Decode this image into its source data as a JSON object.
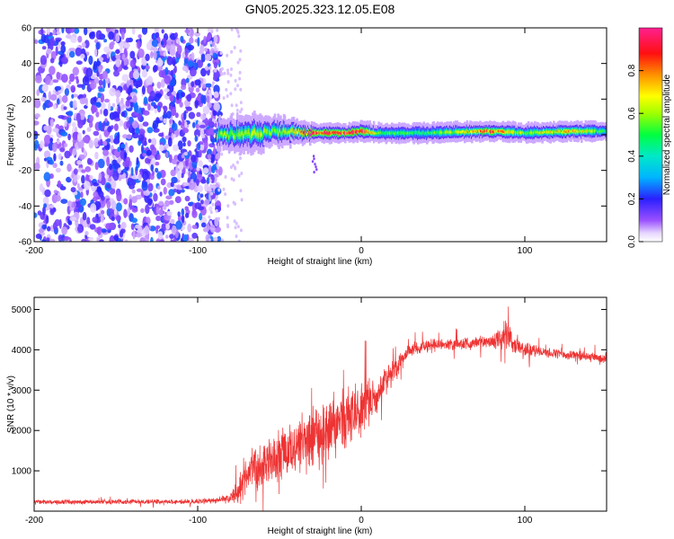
{
  "title": "GN05.2025.323.12.05.E08",
  "chart_data": [
    {
      "type": "heatmap",
      "title": "GN05.2025.323.12.05.E08",
      "xlabel": "Height of straight line (km)",
      "ylabel": "Frequency (Hz)",
      "xlim": [
        -200,
        150
      ],
      "ylim": [
        -60,
        60
      ],
      "xticks": [
        -200,
        -100,
        0,
        100
      ],
      "xtick_labels": [
        "-200",
        "-100",
        "0",
        "100"
      ],
      "yticks": [
        -60,
        -40,
        -20,
        0,
        20,
        40,
        60
      ],
      "ytick_labels": [
        "-60",
        "-40",
        "-20",
        "0",
        "20",
        "40",
        "60"
      ],
      "colorbar": {
        "label": "Normalized spectral amplitude",
        "range": [
          0,
          1
        ],
        "ticks": [
          0.0,
          0.2,
          0.4,
          0.6,
          0.8
        ],
        "tick_labels": [
          "0.0",
          "0.2",
          "0.4",
          "0.6",
          "0.8"
        ],
        "colors": [
          "#ffffff",
          "#7a1fff",
          "#2020ff",
          "#00d8ff",
          "#00ff50",
          "#ffff00",
          "#ff8000",
          "#ff0000",
          "#ff20a0"
        ]
      },
      "noise_region_x": [
        -200,
        -78
      ],
      "signal_band": {
        "x": [
          -88,
          -70,
          -50,
          -30,
          -20,
          -10,
          0,
          10,
          40,
          80,
          100,
          130,
          150
        ],
        "center_hz": [
          0,
          0,
          2,
          1,
          1,
          1,
          2,
          1,
          1,
          2,
          1,
          2,
          2
        ],
        "half_width_hz": [
          3,
          4,
          3,
          2,
          2,
          2,
          2,
          2,
          2,
          2,
          2,
          2,
          2
        ],
        "peak_amplitude": [
          0.55,
          0.65,
          0.6,
          0.9,
          0.95,
          0.9,
          0.95,
          0.55,
          0.5,
          0.85,
          0.6,
          0.75,
          0.5
        ]
      }
    },
    {
      "type": "line",
      "xlabel": "Height of straight line (km)",
      "ylabel": "SNR (10 * v/v)",
      "xlim": [
        -200,
        150
      ],
      "ylim": [
        0,
        5300
      ],
      "xticks": [
        -200,
        -100,
        0,
        100
      ],
      "xtick_labels": [
        "-200",
        "-100",
        "0",
        "100"
      ],
      "yticks": [
        1000,
        2000,
        3000,
        4000,
        5000
      ],
      "ytick_labels": [
        "1000",
        "2000",
        "3000",
        "4000",
        "5000"
      ],
      "color": "#ee3333",
      "series": [
        {
          "name": "SNR",
          "x": [
            -200,
            -150,
            -100,
            -90,
            -80,
            -75,
            -70,
            -60,
            -50,
            -40,
            -30,
            -20,
            -10,
            0,
            10,
            20,
            30,
            40,
            60,
            80,
            88,
            95,
            110,
            130,
            150
          ],
          "mean": [
            220,
            230,
            240,
            260,
            340,
            500,
            900,
            1200,
            1400,
            1600,
            1800,
            2050,
            2300,
            2550,
            2900,
            3500,
            4000,
            4100,
            4150,
            4200,
            4400,
            4050,
            3950,
            3850,
            3800
          ],
          "spread": [
            70,
            70,
            70,
            80,
            150,
            400,
            600,
            700,
            800,
            900,
            950,
            950,
            900,
            800,
            500,
            300,
            200,
            200,
            180,
            200,
            500,
            250,
            150,
            150,
            150
          ]
        }
      ]
    }
  ]
}
